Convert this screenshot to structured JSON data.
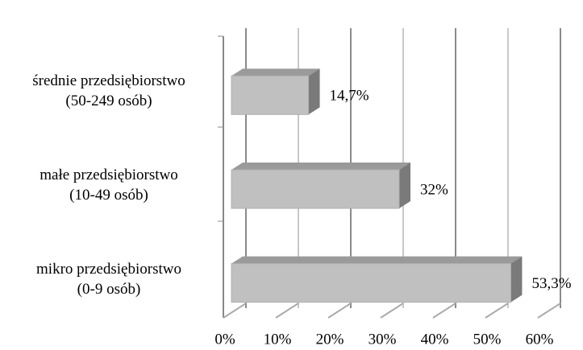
{
  "chart_data": {
    "type": "bar3d",
    "orientation": "horizontal",
    "categories": [
      "średnie przedsiębiorstwo\n(50-249 osób)",
      "małe przedsiębiorstwo\n(10-49 osób)",
      "mikro przedsiębiorstwo\n(0-9 osób)"
    ],
    "values": [
      14.7,
      32,
      53.3
    ],
    "value_labels": [
      "14,7%",
      "32%",
      "53,3%"
    ],
    "color": "#c0c0c0",
    "xlim": [
      0,
      60
    ],
    "xticks": [
      {
        "value": 0,
        "label": "0%"
      },
      {
        "value": 10,
        "label": "10%"
      },
      {
        "value": 20,
        "label": "20%"
      },
      {
        "value": 30,
        "label": "30%"
      },
      {
        "value": 40,
        "label": "40%"
      },
      {
        "value": 50,
        "label": "50%"
      },
      {
        "value": 60,
        "label": "60%"
      }
    ],
    "grid": true
  }
}
